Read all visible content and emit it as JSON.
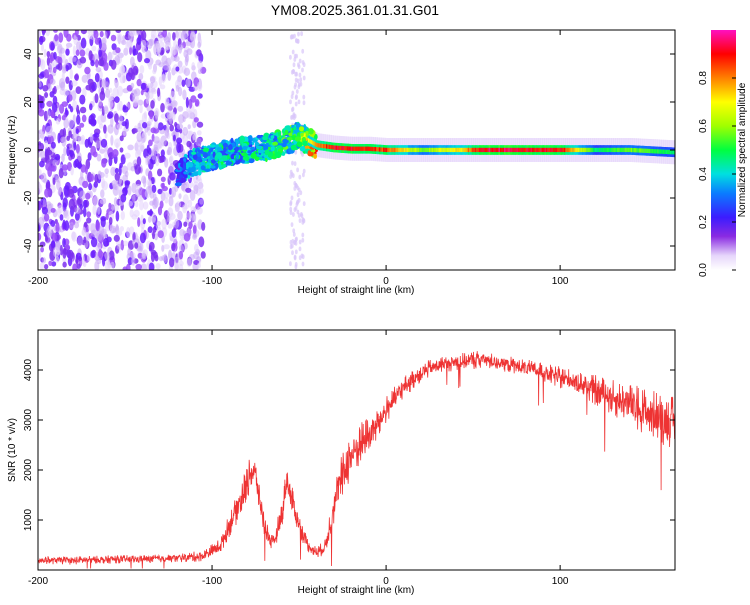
{
  "title": "YM08.2025.361.01.31.G01",
  "colors": {
    "snr_line": "#ee3333",
    "spectrum_peak": "#ff0000",
    "axis": "#000000"
  },
  "chart_data": [
    {
      "type": "heatmap",
      "name": "spectrogram",
      "xlabel": "Height of straight line (km)",
      "ylabel": "Frequency (Hz)",
      "xlim": [
        -200,
        166
      ],
      "ylim": [
        -50,
        50
      ],
      "x_ticks": [
        -200,
        -100,
        0,
        100
      ],
      "x_tick_labels": [
        "-200",
        "-100",
        "0",
        "100"
      ],
      "y_ticks": [
        -40,
        -20,
        0,
        20,
        40
      ],
      "y_tick_labels": [
        "-40",
        "-20",
        "0",
        "20",
        "40"
      ],
      "colorbar": {
        "label": "Normalized spectral amplitude",
        "range": [
          0,
          1
        ],
        "ticks": [
          0.0,
          0.2,
          0.4,
          0.6,
          0.8
        ],
        "tick_labels": [
          "0.0",
          "0.2",
          "0.4",
          "0.6",
          "0.8"
        ]
      },
      "ridge": {
        "x": [
          -120,
          -110,
          -100,
          -90,
          -80,
          -70,
          -60,
          -50,
          -40,
          -30,
          -20,
          -10,
          0,
          20,
          40,
          60,
          80,
          100,
          120,
          140,
          166
        ],
        "freq_hz": [
          -10,
          -5,
          -3,
          -1,
          0,
          1,
          3,
          6,
          2,
          1,
          0.5,
          0.5,
          0,
          0,
          0,
          0,
          0,
          0,
          0,
          0,
          -1
        ],
        "amplitude": [
          0.3,
          0.4,
          0.45,
          0.45,
          0.45,
          0.45,
          0.5,
          0.55,
          0.85,
          0.95,
          0.95,
          0.9,
          0.9,
          0.6,
          0.75,
          1.0,
          0.95,
          0.95,
          0.5,
          0.6,
          0.5
        ]
      },
      "noise_region_x": [
        -200,
        -105
      ]
    },
    {
      "type": "line",
      "name": "snr",
      "xlabel": "Height of straight line (km)",
      "ylabel": "SNR (10 * v/v)",
      "xlim": [
        -200,
        166
      ],
      "ylim": [
        0,
        4800
      ],
      "x_ticks": [
        -200,
        -100,
        0,
        100
      ],
      "x_tick_labels": [
        "-200",
        "-100",
        "0",
        "100"
      ],
      "y_ticks": [
        1000,
        2000,
        3000,
        4000
      ],
      "y_tick_labels": [
        "1000",
        "2000",
        "3000",
        "4000"
      ],
      "series": [
        {
          "name": "SNR",
          "x": [
            -200,
            -180,
            -160,
            -140,
            -120,
            -105,
            -95,
            -90,
            -85,
            -80,
            -78,
            -75,
            -72,
            -70,
            -65,
            -60,
            -57,
            -55,
            -50,
            -45,
            -40,
            -35,
            -30,
            -25,
            -20,
            -15,
            -10,
            -5,
            0,
            10,
            20,
            30,
            40,
            50,
            55,
            60,
            70,
            80,
            90,
            100,
            110,
            120,
            130,
            140,
            150,
            160,
            166
          ],
          "y": [
            200,
            190,
            210,
            220,
            240,
            280,
            500,
            900,
            1300,
            1700,
            2000,
            1900,
            1300,
            900,
            500,
            1100,
            1800,
            1500,
            900,
            500,
            350,
            450,
            1300,
            1900,
            2300,
            2500,
            2700,
            2900,
            3200,
            3650,
            3950,
            4100,
            4150,
            4200,
            4220,
            4180,
            4120,
            4050,
            3950,
            3850,
            3750,
            3600,
            3450,
            3300,
            3150,
            3000,
            2950
          ],
          "spread": [
            150,
            150,
            150,
            150,
            160,
            200,
            300,
            450,
            600,
            700,
            650,
            600,
            550,
            400,
            300,
            500,
            600,
            550,
            400,
            250,
            200,
            300,
            700,
            900,
            900,
            800,
            700,
            600,
            500,
            400,
            350,
            300,
            300,
            350,
            350,
            300,
            300,
            300,
            350,
            400,
            450,
            550,
            650,
            800,
            900,
            950,
            1000
          ]
        }
      ]
    }
  ]
}
